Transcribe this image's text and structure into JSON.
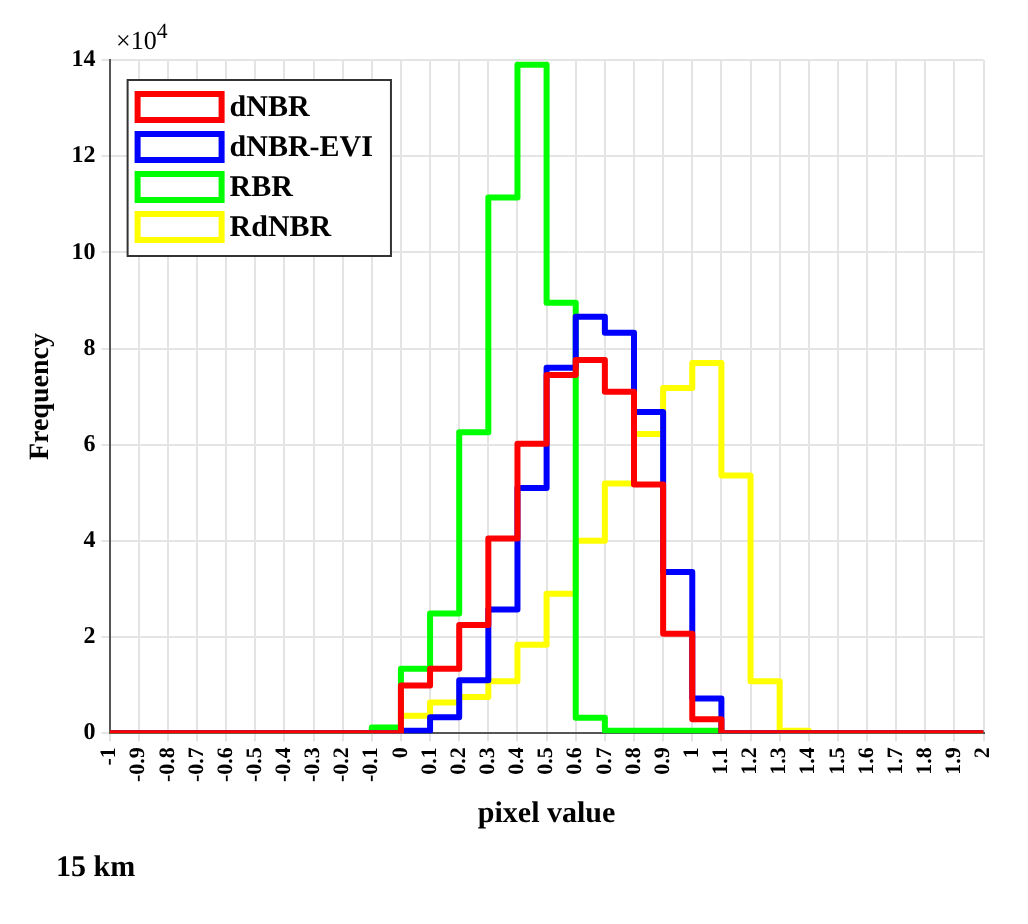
{
  "chart_data": {
    "type": "histogram",
    "xlabel": "pixel value",
    "ylabel": "Frequency",
    "annotations": [
      "×10$^{4}$",
      "15 km"
    ],
    "bins": [
      -1,
      -0.9,
      -0.8,
      -0.7,
      -0.6,
      -0.5,
      -0.4,
      -0.3,
      -0.2,
      -0.1,
      0,
      0.1,
      0.2,
      0.3,
      0.4,
      0.5,
      0.6,
      0.7,
      0.8,
      0.9,
      1,
      1.1,
      1.2,
      1.3,
      1.4,
      1.5,
      1.6,
      1.7,
      1.8,
      1.9,
      2
    ],
    "series": [
      {
        "name": "dNBR",
        "color": "#ff0000",
        "values": [
          0,
          0,
          0,
          0,
          0,
          0,
          0,
          0,
          0,
          0,
          0.99,
          1.34,
          2.25,
          4.05,
          6.02,
          7.45,
          7.76,
          7.1,
          5.17,
          2.07,
          0.29,
          0,
          0,
          0,
          0,
          0,
          0,
          0,
          0,
          0
        ]
      },
      {
        "name": "dNBR-EVI",
        "color": "#0000ff",
        "values": [
          0,
          0,
          0,
          0,
          0,
          0,
          0,
          0,
          0,
          0,
          0.05,
          0.33,
          1.1,
          2.57,
          5.1,
          7.6,
          8.66,
          8.33,
          6.68,
          3.35,
          0.72,
          0,
          0,
          0,
          0,
          0,
          0,
          0,
          0,
          0
        ]
      },
      {
        "name": "RBR",
        "color": "#00ff00",
        "values": [
          0,
          0,
          0,
          0,
          0,
          0,
          0,
          0,
          0,
          0.12,
          1.34,
          2.49,
          6.26,
          11.14,
          13.9,
          8.95,
          0.32,
          0.05,
          0.05,
          0.05,
          0.05,
          0,
          0,
          0,
          0,
          0,
          0,
          0,
          0,
          0
        ]
      },
      {
        "name": "RdNBR",
        "color": "#ffff00",
        "values": [
          0,
          0,
          0,
          0,
          0,
          0,
          0,
          0,
          0,
          0,
          0.36,
          0.64,
          0.75,
          1.08,
          1.84,
          2.9,
          4.0,
          5.19,
          6.22,
          7.18,
          7.7,
          5.36,
          1.08,
          0.05,
          0,
          0,
          0,
          0,
          0,
          0
        ]
      }
    ],
    "xlim": [
      -1,
      2
    ],
    "xticks": [
      -1,
      -0.9,
      -0.8,
      -0.7,
      -0.6,
      -0.5,
      -0.4,
      -0.3,
      -0.2,
      -0.1,
      0,
      0.1,
      0.2,
      0.3,
      0.4,
      0.5,
      0.6,
      0.7,
      0.8,
      0.9,
      1,
      1.1,
      1.2,
      1.3,
      1.4,
      1.5,
      1.6,
      1.7,
      1.8,
      1.9,
      2
    ],
    "ylim": [
      0,
      14
    ],
    "yticks": [
      0,
      2,
      4,
      6,
      8,
      10,
      12,
      14
    ],
    "grid": true,
    "legend": "top left"
  }
}
